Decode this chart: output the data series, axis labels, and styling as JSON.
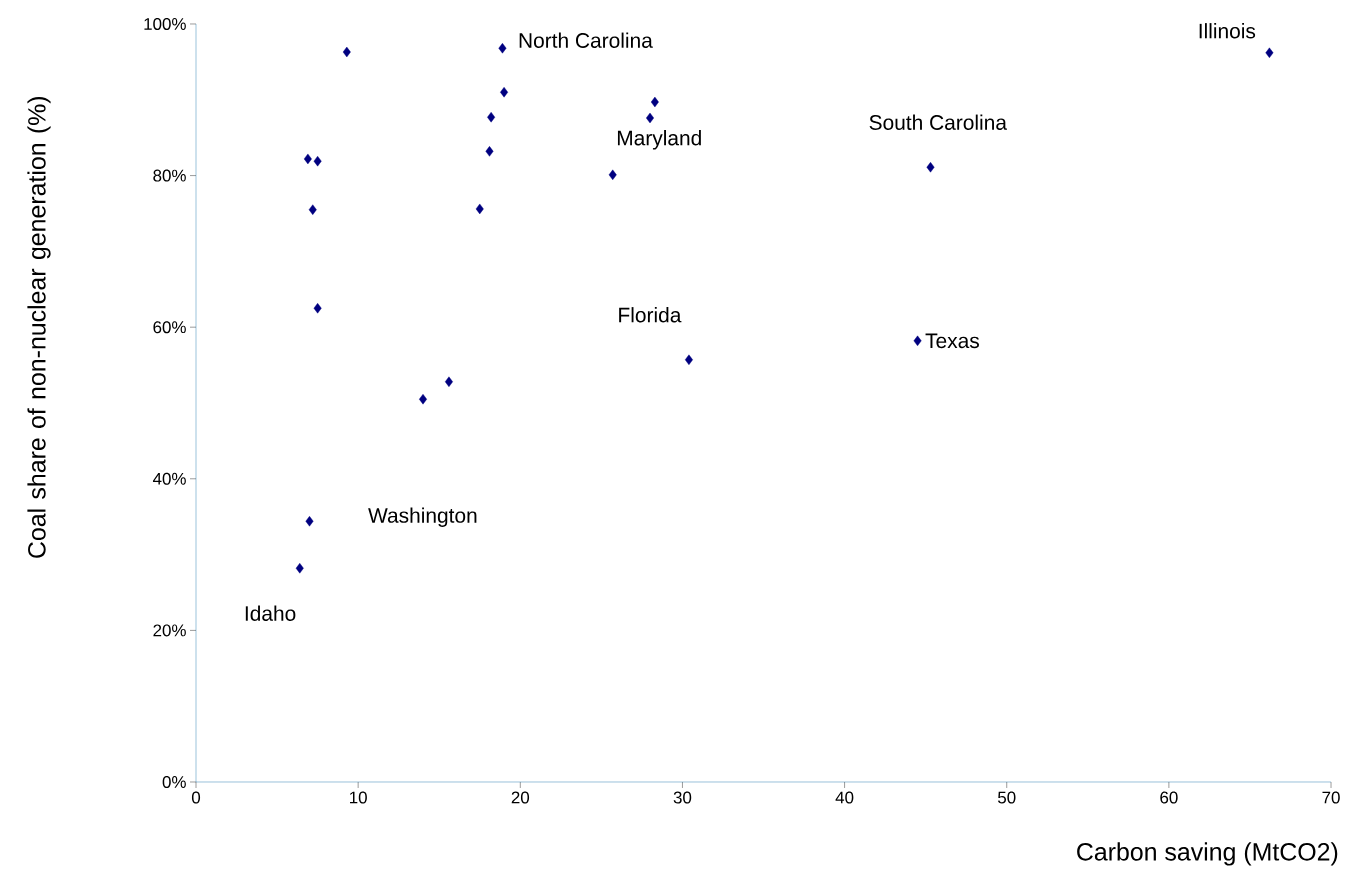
{
  "chart_data": {
    "type": "scatter",
    "xlabel": "Carbon saving (MtCO2)",
    "ylabel": "Coal share of non-nuclear generation (%)",
    "x": [
      9.3,
      18.9,
      19.0,
      28.3,
      28.0,
      18.2,
      18.1,
      6.9,
      7.5,
      7.2,
      17.5,
      25.7,
      45.3,
      66.2,
      7.5,
      15.6,
      14.0,
      30.4,
      44.5,
      7.0,
      6.4
    ],
    "series": [
      {
        "color": "#000080",
        "values": [
          96.3,
          96.8,
          91.0,
          89.7,
          87.6,
          87.7,
          83.2,
          82.2,
          81.9,
          75.5,
          75.6,
          80.1,
          81.1,
          96.2,
          62.5,
          52.8,
          50.5,
          55.7,
          58.2,
          34.4,
          28.2
        ]
      }
    ],
    "marker": "diamond",
    "grid": false,
    "xlim": [
      0,
      70
    ],
    "xticks": [
      0,
      10,
      20,
      30,
      40,
      50,
      60,
      70
    ],
    "ylim": [
      0,
      100
    ],
    "yticks": [
      {
        "value": 0,
        "label": "0%"
      },
      {
        "value": 20,
        "label": "20%"
      },
      {
        "value": 40,
        "label": "40%"
      },
      {
        "value": 60,
        "label": "60%"
      },
      {
        "value": 80,
        "label": "80%"
      },
      {
        "value": 100,
        "label": "100%"
      }
    ],
    "annotations": [
      {
        "text": "North Carolina",
        "x": 18.9,
        "y": 96.8
      },
      {
        "text": "Illinois",
        "x": 66.2,
        "y": 96.2
      },
      {
        "text": "South Carolina",
        "x": 45.3,
        "y": 81.1
      },
      {
        "text": "Maryland",
        "x": 25.7,
        "y": 80.1
      },
      {
        "text": "Florida",
        "x": 30.4,
        "y": 55.7
      },
      {
        "text": "Texas",
        "x": 44.5,
        "y": 58.2
      },
      {
        "text": "Washington",
        "x": 7.0,
        "y": 34.4
      },
      {
        "text": "Idaho",
        "x": 6.4,
        "y": 28.2
      }
    ]
  }
}
